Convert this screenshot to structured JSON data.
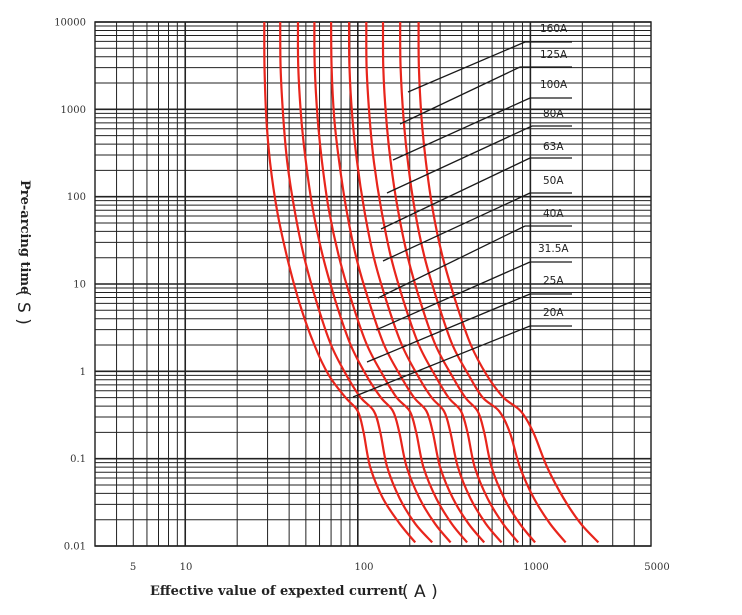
{
  "chart_data": {
    "type": "line",
    "x_scale": "log",
    "y_scale": "log",
    "xlim": [
      3,
      5000
    ],
    "ylim": [
      0.01,
      10000
    ],
    "grid": true,
    "legend": "top-right, leader lines",
    "x_ticks": [
      {
        "value": 5,
        "label": "5"
      },
      {
        "value": 10,
        "label": "10"
      },
      {
        "value": 100,
        "label": "100"
      },
      {
        "value": 1000,
        "label": "1000"
      },
      {
        "value": 5000,
        "label": "5000"
      }
    ],
    "y_ticks": [
      {
        "value": 10000,
        "label": "10000"
      },
      {
        "value": 1000,
        "label": "1000"
      },
      {
        "value": 100,
        "label": "100"
      },
      {
        "value": 10,
        "label": "10"
      },
      {
        "value": 1,
        "label": "1"
      },
      {
        "value": 0.1,
        "label": "0.1"
      },
      {
        "value": 0.01,
        "label": "0.01"
      }
    ],
    "xlabel_text": "Effective value of expexted current",
    "xlabel_unit": "( A )",
    "ylabel_text": "Pre-arcing time",
    "ylabel_unit": "( S )",
    "series_color": "#e8251c",
    "series": [
      {
        "name": "20A",
        "points": [
          [
            28.7,
            10000
          ],
          [
            28.8,
            3000
          ],
          [
            29.5,
            800
          ],
          [
            31,
            250
          ],
          [
            34,
            70
          ],
          [
            39,
            20
          ],
          [
            46,
            6
          ],
          [
            56,
            2
          ],
          [
            68,
            0.9
          ],
          [
            85,
            0.5
          ],
          [
            100,
            0.35
          ],
          [
            108,
            0.2
          ],
          [
            118,
            0.08
          ],
          [
            140,
            0.035
          ],
          [
            175,
            0.018
          ],
          [
            215,
            0.011
          ]
        ]
      },
      {
        "name": "25A",
        "points": [
          [
            35.5,
            10000
          ],
          [
            35.7,
            3000
          ],
          [
            37,
            800
          ],
          [
            39,
            250
          ],
          [
            43,
            70
          ],
          [
            49,
            20
          ],
          [
            58,
            6
          ],
          [
            70,
            2
          ],
          [
            86,
            0.9
          ],
          [
            104,
            0.5
          ],
          [
            124,
            0.35
          ],
          [
            135,
            0.2
          ],
          [
            148,
            0.08
          ],
          [
            175,
            0.035
          ],
          [
            215,
            0.018
          ],
          [
            270,
            0.011
          ]
        ]
      },
      {
        "name": "31.5A",
        "points": [
          [
            45,
            10000
          ],
          [
            45.2,
            3000
          ],
          [
            47,
            800
          ],
          [
            50,
            250
          ],
          [
            55,
            70
          ],
          [
            63,
            20
          ],
          [
            75,
            6
          ],
          [
            91,
            2
          ],
          [
            112,
            0.9
          ],
          [
            136,
            0.5
          ],
          [
            160,
            0.35
          ],
          [
            174,
            0.2
          ],
          [
            192,
            0.08
          ],
          [
            228,
            0.035
          ],
          [
            280,
            0.018
          ],
          [
            345,
            0.011
          ]
        ]
      },
      {
        "name": "40A",
        "points": [
          [
            56,
            10000
          ],
          [
            56.3,
            3000
          ],
          [
            58.5,
            800
          ],
          [
            62,
            250
          ],
          [
            68,
            70
          ],
          [
            78,
            20
          ],
          [
            93,
            6
          ],
          [
            113,
            2
          ],
          [
            140,
            0.9
          ],
          [
            168,
            0.5
          ],
          [
            200,
            0.35
          ],
          [
            218,
            0.2
          ],
          [
            240,
            0.08
          ],
          [
            285,
            0.035
          ],
          [
            350,
            0.018
          ],
          [
            430,
            0.011
          ]
        ]
      },
      {
        "name": "50A",
        "points": [
          [
            70,
            10000
          ],
          [
            70.5,
            3000
          ],
          [
            73,
            800
          ],
          [
            78,
            250
          ],
          [
            86,
            70
          ],
          [
            98,
            20
          ],
          [
            117,
            6
          ],
          [
            142,
            2
          ],
          [
            176,
            0.9
          ],
          [
            212,
            0.5
          ],
          [
            250,
            0.35
          ],
          [
            272,
            0.2
          ],
          [
            300,
            0.08
          ],
          [
            356,
            0.035
          ],
          [
            438,
            0.018
          ],
          [
            540,
            0.011
          ]
        ]
      },
      {
        "name": "63A",
        "points": [
          [
            89,
            10000
          ],
          [
            89.5,
            3000
          ],
          [
            93,
            800
          ],
          [
            99,
            250
          ],
          [
            109,
            70
          ],
          [
            124,
            20
          ],
          [
            148,
            6
          ],
          [
            180,
            2
          ],
          [
            222,
            0.9
          ],
          [
            268,
            0.5
          ],
          [
            316,
            0.35
          ],
          [
            344,
            0.2
          ],
          [
            380,
            0.08
          ],
          [
            450,
            0.035
          ],
          [
            552,
            0.018
          ],
          [
            680,
            0.011
          ]
        ]
      },
      {
        "name": "80A",
        "points": [
          [
            112,
            10000
          ],
          [
            112.5,
            3000
          ],
          [
            117,
            800
          ],
          [
            124,
            250
          ],
          [
            137,
            70
          ],
          [
            156,
            20
          ],
          [
            186,
            6
          ],
          [
            226,
            2
          ],
          [
            280,
            0.9
          ],
          [
            336,
            0.5
          ],
          [
            396,
            0.35
          ],
          [
            432,
            0.2
          ],
          [
            476,
            0.08
          ],
          [
            565,
            0.035
          ],
          [
            694,
            0.018
          ],
          [
            850,
            0.011
          ]
        ]
      },
      {
        "name": "100A",
        "points": [
          [
            140,
            10000
          ],
          [
            140.5,
            3000
          ],
          [
            146,
            800
          ],
          [
            155,
            250
          ],
          [
            171,
            70
          ],
          [
            195,
            20
          ],
          [
            232,
            6
          ],
          [
            282,
            2
          ],
          [
            350,
            0.9
          ],
          [
            420,
            0.5
          ],
          [
            495,
            0.35
          ],
          [
            540,
            0.2
          ],
          [
            596,
            0.08
          ],
          [
            706,
            0.035
          ],
          [
            868,
            0.018
          ],
          [
            1065,
            0.011
          ]
        ]
      },
      {
        "name": "125A",
        "points": [
          [
            176,
            10000
          ],
          [
            177,
            3000
          ],
          [
            184,
            800
          ],
          [
            195,
            250
          ],
          [
            214,
            70
          ],
          [
            244,
            20
          ],
          [
            292,
            6
          ],
          [
            354,
            2
          ],
          [
            440,
            0.9
          ],
          [
            530,
            0.5
          ],
          [
            660,
            0.35
          ],
          [
            760,
            0.2
          ],
          [
            870,
            0.08
          ],
          [
            1050,
            0.035
          ],
          [
            1300,
            0.018
          ],
          [
            1600,
            0.011
          ]
        ]
      },
      {
        "name": "160A",
        "points": [
          [
            225,
            10000
          ],
          [
            226,
            3000
          ],
          [
            234,
            800
          ],
          [
            248,
            250
          ],
          [
            272,
            70
          ],
          [
            311,
            20
          ],
          [
            372,
            6
          ],
          [
            452,
            2
          ],
          [
            560,
            0.9
          ],
          [
            700,
            0.5
          ],
          [
            880,
            0.35
          ],
          [
            1040,
            0.2
          ],
          [
            1250,
            0.08
          ],
          [
            1560,
            0.035
          ],
          [
            1960,
            0.018
          ],
          [
            2480,
            0.011
          ]
        ]
      }
    ]
  }
}
